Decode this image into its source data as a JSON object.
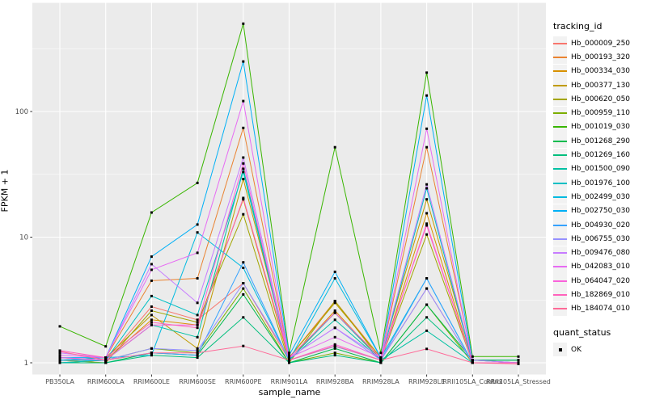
{
  "chart_data": {
    "type": "line",
    "title": "",
    "xlabel": "sample_name",
    "ylabel": "FPKM + 1",
    "yscale": "log10",
    "ytick_labels": [
      "1",
      "10",
      "100"
    ],
    "ytick_values": [
      1,
      10,
      100
    ],
    "ylim": [
      0.93,
      660
    ],
    "grid": "major-and-minor",
    "legend_position": "right",
    "point_shape": "filled-square-black",
    "panel_background": "#EBEBEB",
    "gridline_color": "#FFFFFF",
    "axis_text_color": "#4D4D4D",
    "categories": [
      "PB350LA",
      "RRIM600LA",
      "RRIM600LE",
      "RRIM600SE",
      "RRIM600PE",
      "RRIM901LA",
      "RRIM928BA",
      "RRIM928LA",
      "RRIM928LE",
      "RRII105LA_Control",
      "RRII105LA_Stressed"
    ],
    "series": [
      {
        "name": "Hb_000009_250",
        "color": "#F8766D",
        "values": [
          1.1,
          1.05,
          2.8,
          2.2,
          4.3,
          1.05,
          2.5,
          1.05,
          3.9,
          1.0,
          1.0
        ]
      },
      {
        "name": "Hb_000193_320",
        "color": "#EA8331",
        "values": [
          1.05,
          1.1,
          4.5,
          4.7,
          74,
          1.1,
          3.1,
          1.1,
          52,
          1.05,
          1.0
        ]
      },
      {
        "name": "Hb_000334_030",
        "color": "#D89000",
        "values": [
          1.0,
          1.05,
          2.2,
          2.0,
          20,
          1.05,
          2.6,
          1.05,
          15.5,
          1.0,
          1.0
        ]
      },
      {
        "name": "Hb_000377_130",
        "color": "#C09B00",
        "values": [
          1.05,
          1.1,
          2.4,
          1.3,
          29,
          1.1,
          3.0,
          1.1,
          20,
          1.05,
          1.05
        ]
      },
      {
        "name": "Hb_000620_050",
        "color": "#A3A500",
        "values": [
          1.05,
          1.0,
          2.6,
          2.1,
          15.2,
          1.0,
          3.1,
          1.05,
          10.5,
          1.0,
          1.0
        ]
      },
      {
        "name": "Hb_000959_110",
        "color": "#7CAE00",
        "values": [
          1.0,
          1.05,
          1.3,
          1.2,
          3.9,
          1.0,
          1.2,
          1.0,
          2.9,
          1.0,
          1.0
        ]
      },
      {
        "name": "Hb_001019_030",
        "color": "#39B600",
        "values": [
          1.95,
          1.35,
          15.7,
          27,
          500,
          1.2,
          52,
          1.2,
          204,
          1.12,
          1.12
        ]
      },
      {
        "name": "Hb_001268_290",
        "color": "#00BB4E",
        "values": [
          1.0,
          1.0,
          1.2,
          1.15,
          3.5,
          1.0,
          1.3,
          1.0,
          2.9,
          1.05,
          1.05
        ]
      },
      {
        "name": "Hb_001269_160",
        "color": "#00BF7D",
        "values": [
          1.0,
          1.0,
          1.15,
          1.1,
          2.3,
          1.0,
          1.15,
          1.0,
          2.3,
          1.05,
          1.05
        ]
      },
      {
        "name": "Hb_001500_090",
        "color": "#00C1A3",
        "values": [
          1.05,
          1.05,
          2.0,
          1.6,
          35,
          1.05,
          2.2,
          1.05,
          1.8,
          1.0,
          1.0
        ]
      },
      {
        "name": "Hb_001976_100",
        "color": "#00BFC4",
        "values": [
          1.0,
          1.05,
          3.4,
          2.4,
          33,
          1.05,
          2.5,
          1.05,
          24.5,
          1.0,
          1.0
        ]
      },
      {
        "name": "Hb_002499_030",
        "color": "#00BAE0",
        "values": [
          1.05,
          1.1,
          1.15,
          10.9,
          5.7,
          1.05,
          4.7,
          1.1,
          4.7,
          1.0,
          1.0
        ]
      },
      {
        "name": "Hb_002750_030",
        "color": "#00B0F6",
        "values": [
          1.1,
          1.1,
          7.0,
          12.6,
          250,
          1.15,
          5.3,
          1.1,
          134,
          1.05,
          1.0
        ]
      },
      {
        "name": "Hb_004930_020",
        "color": "#35A2FF",
        "values": [
          1.05,
          1.05,
          1.2,
          1.15,
          6.3,
          1.05,
          1.35,
          1.05,
          4.7,
          1.0,
          1.0
        ]
      },
      {
        "name": "Hb_006755_030",
        "color": "#9590FF",
        "values": [
          1.1,
          1.05,
          1.3,
          1.25,
          4.3,
          1.1,
          1.9,
          1.05,
          3.9,
          1.0,
          1.0
        ]
      },
      {
        "name": "Hb_009476_080",
        "color": "#C77CFF",
        "values": [
          1.2,
          1.1,
          6.1,
          3.0,
          43,
          1.1,
          1.9,
          1.1,
          26.3,
          1.05,
          1.0
        ]
      },
      {
        "name": "Hb_042083_010",
        "color": "#E76BF3",
        "values": [
          1.15,
          1.1,
          5.5,
          7.5,
          121,
          1.1,
          1.6,
          1.1,
          73,
          1.0,
          1.0
        ]
      },
      {
        "name": "Hb_064047_020",
        "color": "#FA62DB",
        "values": [
          1.1,
          1.05,
          2.0,
          2.0,
          38.6,
          1.05,
          1.4,
          1.05,
          12.8,
          1.0,
          1.0
        ]
      },
      {
        "name": "Hb_182869_010",
        "color": "#FF62BC",
        "values": [
          1.25,
          1.1,
          2.1,
          1.9,
          20.5,
          1.1,
          2.5,
          1.1,
          12.4,
          1.0,
          1.0
        ]
      },
      {
        "name": "Hb_184074_010",
        "color": "#FF6A98",
        "values": [
          1.23,
          1.05,
          1.2,
          1.2,
          1.36,
          1.05,
          1.36,
          1.05,
          1.29,
          1.0,
          0.98
        ]
      }
    ]
  },
  "legend": {
    "tracking_title": "tracking_id",
    "quant_title": "quant_status",
    "quant_items": [
      {
        "label": "OK"
      }
    ]
  }
}
